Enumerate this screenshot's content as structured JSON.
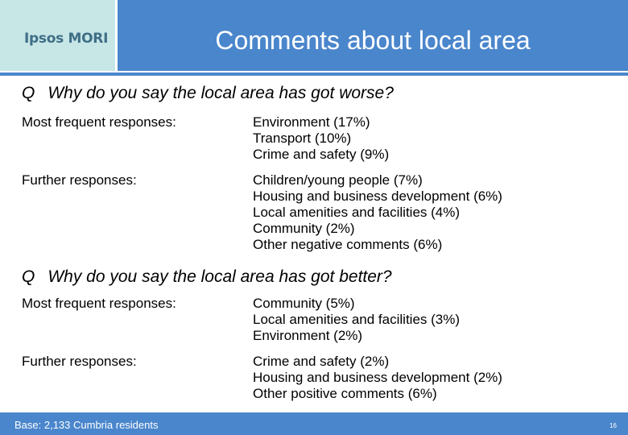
{
  "logo": "Ipsos MORI",
  "title": "Comments about local area",
  "sections": [
    {
      "q_mark": "Q",
      "question": "Why do you say the local area has got worse?",
      "most_label": "Most frequent responses:",
      "most": [
        "Environment (17%)",
        "Transport (10%)",
        "Crime and safety (9%)"
      ],
      "further_label": "Further responses:",
      "further": [
        "Children/young people (7%)",
        "Housing and business development (6%)",
        "Local amenities and facilities (4%)",
        "Community (2%)",
        "Other negative comments (6%)"
      ]
    },
    {
      "q_mark": "Q",
      "question": "Why do you say the local area has got better?",
      "most_label": "Most frequent responses:",
      "most": [
        "Community (5%)",
        "Local amenities and facilities (3%)",
        "Environment (2%)"
      ],
      "further_label": "Further responses:",
      "further": [
        "Crime and safety (2%)",
        "Housing and business development (2%)",
        "Other positive comments (6%)"
      ]
    }
  ],
  "footer": {
    "base": "Base: 2,133 Cumbria residents",
    "page": "16"
  },
  "colors": {
    "header": "#4a86cc",
    "logo_bg": "#c7e6e6",
    "logo_text": "#3f6f86"
  }
}
